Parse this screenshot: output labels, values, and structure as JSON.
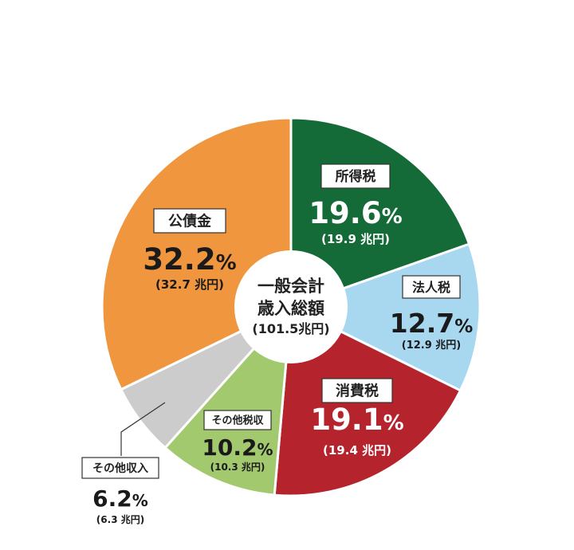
{
  "chart_data": {
    "type": "pie",
    "center_label": [
      "一般会計",
      "歳入総額",
      "(101.5兆円)"
    ],
    "percent_sign": "%",
    "slices": [
      {
        "label": "所得税",
        "percent": 19.6,
        "percent_text": "19.6",
        "amount_text": "(19.9 兆円)",
        "value": 19.9,
        "color": "#146b38"
      },
      {
        "label": "法人税",
        "percent": 12.7,
        "percent_text": "12.7",
        "amount_text": "(12.9 兆円)",
        "value": 12.9,
        "color": "#a8d8f0"
      },
      {
        "label": "消費税",
        "percent": 19.1,
        "percent_text": "19.1",
        "amount_text": "(19.4 兆円)",
        "value": 19.4,
        "color": "#b5232d"
      },
      {
        "label": "その他税収",
        "percent": 10.2,
        "percent_text": "10.2",
        "amount_text": "(10.3 兆円)",
        "value": 10.3,
        "color": "#a2c96e"
      },
      {
        "label": "その他収入",
        "percent": 6.2,
        "percent_text": "6.2",
        "amount_text": "(6.3 兆円)",
        "value": 6.3,
        "color": "#cccccc"
      },
      {
        "label": "公債金",
        "percent": 32.2,
        "percent_text": "32.2",
        "amount_text": "(32.7 兆円)",
        "value": 32.7,
        "color": "#f0963e"
      }
    ]
  }
}
